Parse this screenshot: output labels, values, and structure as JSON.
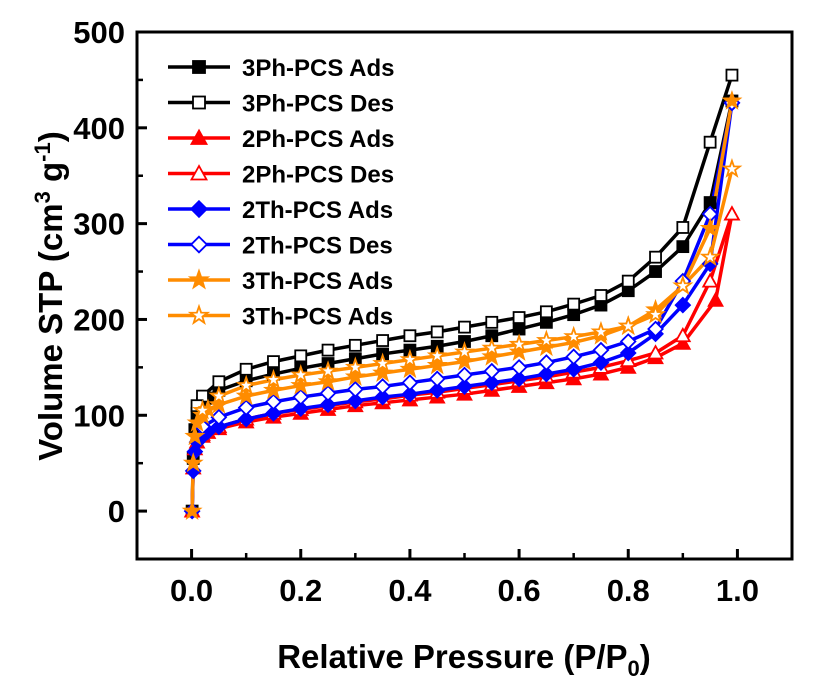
{
  "chart_data": {
    "type": "line",
    "xlabel_main": "Relative Pressure (P/P",
    "xlabel_sub": "0",
    "xlabel_end": ")",
    "ylabel_main": "Volume STP (cm",
    "ylabel_sup1": "3",
    "ylabel_mid": " g",
    "ylabel_sup2": "-1",
    "ylabel_end": ")",
    "xlim": [
      -0.1,
      1.1
    ],
    "ylim": [
      -50,
      500
    ],
    "xticks": [
      0.0,
      0.2,
      0.4,
      0.6,
      0.8,
      1.0
    ],
    "xtick_labels": [
      "0.0",
      "0.2",
      "0.4",
      "0.6",
      "0.8",
      "1.0"
    ],
    "yticks": [
      0,
      100,
      200,
      300,
      400,
      500
    ],
    "ytick_labels": [
      "0",
      "100",
      "200",
      "300",
      "400",
      "500"
    ],
    "legend_position": "top-left",
    "grid": false,
    "series": [
      {
        "name": "3Ph-PCS Ads",
        "color": "#000000",
        "marker": "square",
        "filled": true,
        "x": [
          0.001,
          0.003,
          0.006,
          0.01,
          0.02,
          0.03,
          0.05,
          0.1,
          0.15,
          0.2,
          0.25,
          0.3,
          0.35,
          0.4,
          0.45,
          0.5,
          0.55,
          0.6,
          0.65,
          0.7,
          0.75,
          0.8,
          0.85,
          0.9,
          0.95,
          0.99
        ],
        "y": [
          0,
          55,
          85,
          102,
          112,
          118,
          126,
          136,
          143,
          149,
          154,
          159,
          164,
          168,
          172,
          177,
          183,
          190,
          197,
          205,
          215,
          230,
          250,
          276,
          322,
          428
        ]
      },
      {
        "name": "3Ph-PCS Des",
        "color": "#000000",
        "marker": "square",
        "filled": false,
        "x": [
          0.99,
          0.95,
          0.9,
          0.85,
          0.8,
          0.75,
          0.7,
          0.65,
          0.6,
          0.55,
          0.5,
          0.45,
          0.4,
          0.35,
          0.3,
          0.25,
          0.2,
          0.15,
          0.1,
          0.05,
          0.02,
          0.01
        ],
        "y": [
          455,
          385,
          296,
          265,
          240,
          225,
          216,
          208,
          202,
          197,
          192,
          187,
          183,
          178,
          173,
          168,
          162,
          156,
          148,
          135,
          120,
          110
        ]
      },
      {
        "name": "2Ph-PCS Ads",
        "color": "#ff0000",
        "marker": "triangle",
        "filled": true,
        "x": [
          0.001,
          0.003,
          0.006,
          0.01,
          0.02,
          0.03,
          0.05,
          0.1,
          0.15,
          0.2,
          0.25,
          0.3,
          0.35,
          0.4,
          0.45,
          0.5,
          0.55,
          0.6,
          0.65,
          0.7,
          0.75,
          0.8,
          0.85,
          0.9,
          0.96,
          0.99
        ],
        "y": [
          0,
          45,
          65,
          72,
          78,
          82,
          86,
          93,
          98,
          102,
          106,
          110,
          113,
          116,
          119,
          122,
          126,
          130,
          134,
          138,
          143,
          150,
          160,
          175,
          220,
          310
        ]
      },
      {
        "name": "2Ph-PCS Des",
        "color": "#ff0000",
        "marker": "triangle",
        "filled": false,
        "x": [
          0.99,
          0.95,
          0.9,
          0.85,
          0.8,
          0.75,
          0.7,
          0.65,
          0.6,
          0.55,
          0.5,
          0.45,
          0.4,
          0.35,
          0.3,
          0.25,
          0.2,
          0.15,
          0.1,
          0.05,
          0.02
        ],
        "y": [
          310,
          240,
          183,
          165,
          157,
          150,
          145,
          140,
          136,
          132,
          128,
          124,
          121,
          117,
          114,
          110,
          106,
          102,
          96,
          88,
          80
        ]
      },
      {
        "name": "2Th-PCS Ads",
        "color": "#0000ff",
        "marker": "diamond",
        "filled": true,
        "x": [
          0.001,
          0.003,
          0.006,
          0.01,
          0.02,
          0.03,
          0.05,
          0.1,
          0.15,
          0.2,
          0.25,
          0.3,
          0.35,
          0.4,
          0.45,
          0.5,
          0.55,
          0.6,
          0.65,
          0.7,
          0.75,
          0.8,
          0.85,
          0.9,
          0.95,
          0.99
        ],
        "y": [
          0,
          42,
          62,
          72,
          78,
          83,
          88,
          96,
          102,
          107,
          111,
          115,
          119,
          122,
          126,
          130,
          134,
          138,
          143,
          148,
          155,
          165,
          185,
          215,
          258,
          426
        ]
      },
      {
        "name": "2Th-PCS Des",
        "color": "#0000ff",
        "marker": "diamond",
        "filled": false,
        "x": [
          0.99,
          0.95,
          0.9,
          0.85,
          0.8,
          0.75,
          0.7,
          0.65,
          0.6,
          0.55,
          0.5,
          0.45,
          0.4,
          0.35,
          0.3,
          0.25,
          0.2,
          0.15,
          0.1,
          0.05,
          0.02
        ],
        "y": [
          426,
          310,
          240,
          190,
          177,
          168,
          161,
          155,
          150,
          146,
          142,
          138,
          134,
          130,
          127,
          123,
          119,
          114,
          108,
          98,
          88
        ]
      },
      {
        "name": "3Th-PCS Ads",
        "color": "#ff8c00",
        "marker": "star",
        "filled": true,
        "x": [
          0.001,
          0.003,
          0.006,
          0.01,
          0.02,
          0.03,
          0.05,
          0.1,
          0.15,
          0.2,
          0.25,
          0.3,
          0.35,
          0.4,
          0.45,
          0.5,
          0.55,
          0.6,
          0.65,
          0.7,
          0.75,
          0.8,
          0.85,
          0.9,
          0.95,
          0.99
        ],
        "y": [
          0,
          50,
          78,
          92,
          100,
          106,
          111,
          120,
          126,
          131,
          135,
          140,
          144,
          148,
          152,
          156,
          161,
          166,
          171,
          176,
          183,
          193,
          210,
          235,
          295,
          428
        ]
      },
      {
        "name": "3Th-PCS Ads",
        "color": "#ff8c00",
        "marker": "star",
        "filled": false,
        "x": [
          0.99,
          0.95,
          0.9,
          0.85,
          0.8,
          0.75,
          0.7,
          0.65,
          0.6,
          0.55,
          0.5,
          0.45,
          0.4,
          0.35,
          0.3,
          0.25,
          0.2,
          0.15,
          0.1,
          0.05,
          0.02
        ],
        "y": [
          357,
          265,
          235,
          205,
          193,
          187,
          182,
          178,
          174,
          170,
          166,
          162,
          158,
          154,
          150,
          146,
          142,
          137,
          131,
          120,
          105
        ]
      }
    ]
  }
}
